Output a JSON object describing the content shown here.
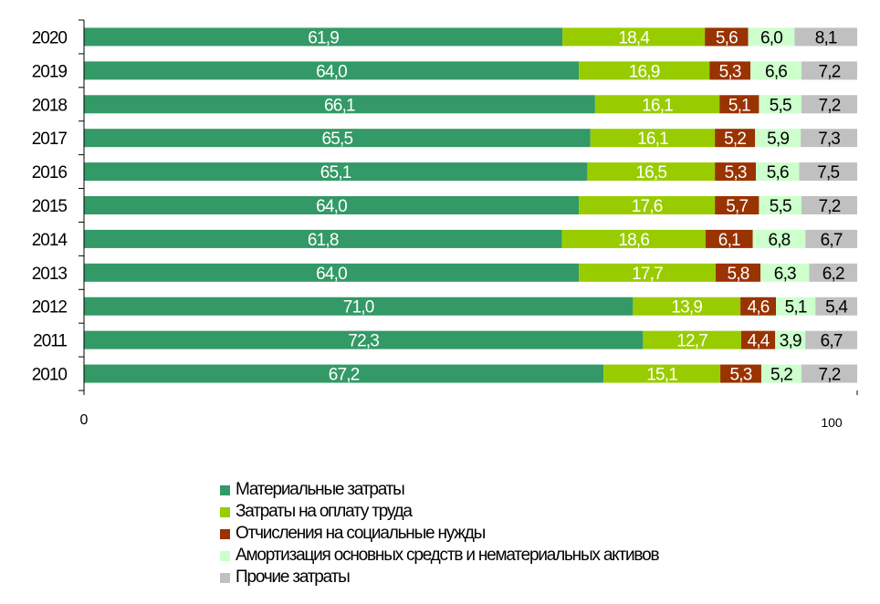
{
  "chart_data": {
    "type": "bar",
    "orientation": "horizontal",
    "stacked": true,
    "categories": [
      "2020",
      "2019",
      "2018",
      "2017",
      "2016",
      "2015",
      "2014",
      "2013",
      "2012",
      "2011",
      "2010"
    ],
    "series": [
      {
        "name": "Материальные затраты",
        "color": "#339966",
        "label_color": "#ffffff",
        "values": [
          61.9,
          64.0,
          66.1,
          65.5,
          65.1,
          64.0,
          61.8,
          64.0,
          71.0,
          72.3,
          67.2
        ],
        "labels": [
          "61,9",
          "64,0",
          "66,1",
          "65,5",
          "65,1",
          "64,0",
          "61,8",
          "64,0",
          "71,0",
          "72,3",
          "67,2"
        ]
      },
      {
        "name": "Затраты на оплату труда",
        "color": "#99cc00",
        "label_color": "#ffffff",
        "values": [
          18.4,
          16.9,
          16.1,
          16.1,
          16.5,
          17.6,
          18.6,
          17.7,
          13.9,
          12.7,
          15.1
        ],
        "labels": [
          "18,4",
          "16,9",
          "16,1",
          "16,1",
          "16,5",
          "17,6",
          "18,6",
          "17,7",
          "13,9",
          "12,7",
          "15,1"
        ]
      },
      {
        "name": "Отчисления на социальные нужды",
        "color": "#993300",
        "label_color": "#ffffff",
        "values": [
          5.6,
          5.3,
          5.1,
          5.2,
          5.3,
          5.7,
          6.1,
          5.8,
          4.6,
          4.4,
          5.3
        ],
        "labels": [
          "5,6",
          "5,3",
          "5,1",
          "5,2",
          "5,3",
          "5,7",
          "6,1",
          "5,8",
          "4,6",
          "4,4",
          "5,3"
        ]
      },
      {
        "name": "Амортизация основных средств и нематериальных активов",
        "color": "#ccffcc",
        "label_color": "#000000",
        "values": [
          6.0,
          6.6,
          5.5,
          5.9,
          5.6,
          5.5,
          6.8,
          6.3,
          5.1,
          3.9,
          5.2
        ],
        "labels": [
          "6,0",
          "6,6",
          "5,5",
          "5,9",
          "5,6",
          "5,5",
          "6,8",
          "6,3",
          "5,1",
          "3,9",
          "5,2"
        ]
      },
      {
        "name": "Прочие затраты",
        "color": "#c0c0c0",
        "label_color": "#000000",
        "values": [
          8.1,
          7.2,
          7.2,
          7.3,
          7.5,
          7.2,
          6.7,
          6.2,
          5.4,
          6.7,
          7.2
        ],
        "labels": [
          "8,1",
          "7,2",
          "7,2",
          "7,3",
          "7,5",
          "7,2",
          "6,7",
          "6,2",
          "5,4",
          "6,7",
          "7,2"
        ]
      }
    ],
    "xlim": [
      0,
      100
    ],
    "x_tick_labels": [
      "0",
      "100"
    ],
    "grid": false,
    "legend_position": "bottom"
  }
}
